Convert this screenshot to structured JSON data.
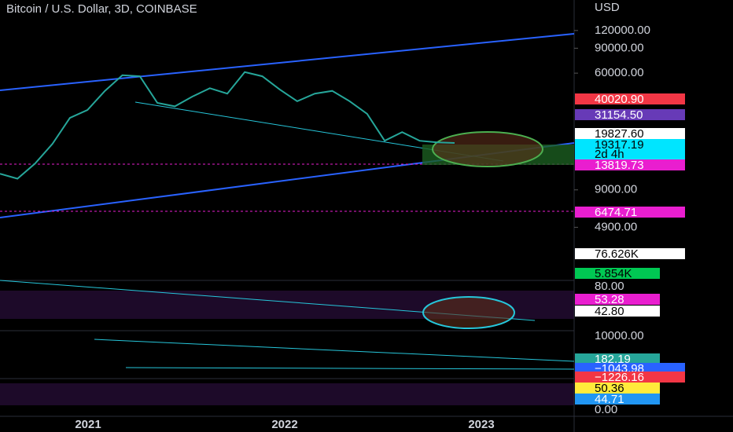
{
  "header": {
    "title": "Bitcoin / U.S. Dollar, 3D, COINBASE"
  },
  "chart_data": {
    "type": "line",
    "log": true,
    "series": [
      {
        "color": "#26a69a",
        "values": [
          11700,
          10800,
          13800,
          19000,
          29000,
          33000,
          45000,
          58000,
          57000,
          37000,
          35000,
          41000,
          47000,
          43000,
          61000,
          57000,
          46000,
          38000,
          43000,
          45000,
          38000,
          31000,
          20000,
          23000,
          20000,
          19500,
          19300
        ]
      }
    ],
    "ylim": [
      2120,
      197000
    ],
    "yticks": [
      {
        "value": 120000,
        "label": "120000.00"
      },
      {
        "value": 90000,
        "label": "90000.00"
      },
      {
        "value": 60000,
        "label": "60000.00"
      },
      {
        "value": 9000,
        "label": "9000.00"
      },
      {
        "value": 4900,
        "label": "4900.00"
      }
    ],
    "axis_unit": "USD",
    "x_labels": [
      "2021",
      "2022",
      "2023"
    ]
  },
  "other_axis_labels": [
    "80.00",
    "10000.00",
    "0.00"
  ],
  "badges": [
    {
      "label": "40020.90",
      "color": "#f23645",
      "text": "#ffffff"
    },
    {
      "label": "31154.50",
      "color": "#673ab7",
      "text": "#ffffff"
    },
    {
      "label": "19827.60",
      "color": "#ffffff",
      "text": "#000000"
    },
    {
      "label": "19317.19",
      "color": "#00e5ff",
      "text": "#000000"
    },
    {
      "label": "2d 4h",
      "color": "#00e5ff",
      "text": "#000000"
    },
    {
      "label": "13819.73",
      "color": "#e91ecf",
      "text": "#ffffff"
    },
    {
      "label": "6474.71",
      "color": "#e91ecf",
      "text": "#ffffff"
    },
    {
      "label": "76.626K",
      "color": "#ffffff",
      "text": "#000000"
    },
    {
      "label": "5.854K",
      "color": "#00c853",
      "text": "#000000"
    },
    {
      "label": "53.28",
      "color": "#e91ecf",
      "text": "#ffffff"
    },
    {
      "label": "42.80",
      "color": "#ffffff",
      "text": "#000000"
    },
    {
      "label": "182.19",
      "color": "#26a69a",
      "text": "#ffffff"
    },
    {
      "label": "−1043.98",
      "color": "#2962ff",
      "text": "#ffffff"
    },
    {
      "label": "−1226.16",
      "color": "#f23645",
      "text": "#ffffff"
    },
    {
      "label": "50.36",
      "color": "#ffeb3b",
      "text": "#000000"
    },
    {
      "label": "44.71",
      "color": "#2196f3",
      "text": "#ffffff"
    }
  ]
}
